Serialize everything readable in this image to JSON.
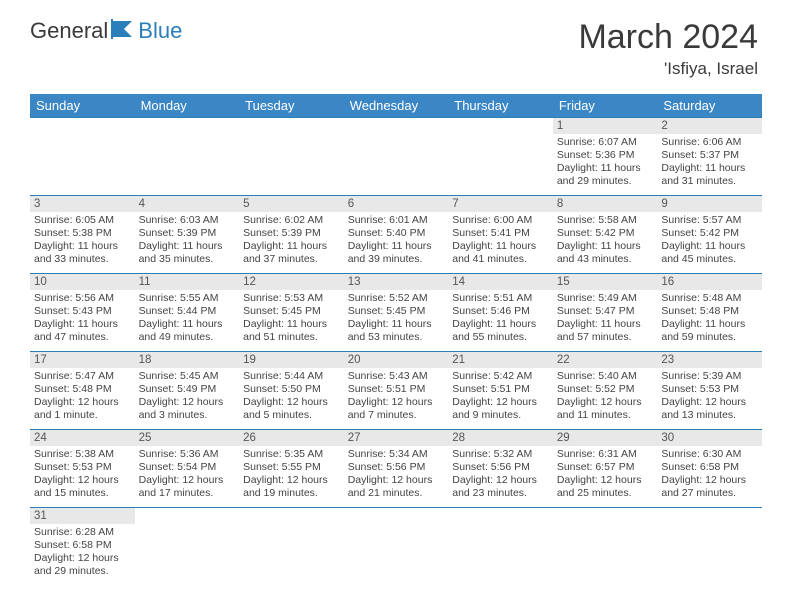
{
  "logo": {
    "text1": "General",
    "text2": "Blue"
  },
  "header": {
    "title": "March 2024",
    "location": "'Isfiya, Israel"
  },
  "colors": {
    "header_bg": "#3b86c5",
    "header_text": "#ffffff",
    "daynum_bg": "#e8e8e8",
    "border": "#2a7fba",
    "text": "#444444"
  },
  "weekdays": [
    "Sunday",
    "Monday",
    "Tuesday",
    "Wednesday",
    "Thursday",
    "Friday",
    "Saturday"
  ],
  "weeks": [
    [
      {
        "n": "",
        "sr": "",
        "ss": "",
        "dl": ""
      },
      {
        "n": "",
        "sr": "",
        "ss": "",
        "dl": ""
      },
      {
        "n": "",
        "sr": "",
        "ss": "",
        "dl": ""
      },
      {
        "n": "",
        "sr": "",
        "ss": "",
        "dl": ""
      },
      {
        "n": "",
        "sr": "",
        "ss": "",
        "dl": ""
      },
      {
        "n": "1",
        "sr": "Sunrise: 6:07 AM",
        "ss": "Sunset: 5:36 PM",
        "dl": "Daylight: 11 hours and 29 minutes."
      },
      {
        "n": "2",
        "sr": "Sunrise: 6:06 AM",
        "ss": "Sunset: 5:37 PM",
        "dl": "Daylight: 11 hours and 31 minutes."
      }
    ],
    [
      {
        "n": "3",
        "sr": "Sunrise: 6:05 AM",
        "ss": "Sunset: 5:38 PM",
        "dl": "Daylight: 11 hours and 33 minutes."
      },
      {
        "n": "4",
        "sr": "Sunrise: 6:03 AM",
        "ss": "Sunset: 5:39 PM",
        "dl": "Daylight: 11 hours and 35 minutes."
      },
      {
        "n": "5",
        "sr": "Sunrise: 6:02 AM",
        "ss": "Sunset: 5:39 PM",
        "dl": "Daylight: 11 hours and 37 minutes."
      },
      {
        "n": "6",
        "sr": "Sunrise: 6:01 AM",
        "ss": "Sunset: 5:40 PM",
        "dl": "Daylight: 11 hours and 39 minutes."
      },
      {
        "n": "7",
        "sr": "Sunrise: 6:00 AM",
        "ss": "Sunset: 5:41 PM",
        "dl": "Daylight: 11 hours and 41 minutes."
      },
      {
        "n": "8",
        "sr": "Sunrise: 5:58 AM",
        "ss": "Sunset: 5:42 PM",
        "dl": "Daylight: 11 hours and 43 minutes."
      },
      {
        "n": "9",
        "sr": "Sunrise: 5:57 AM",
        "ss": "Sunset: 5:42 PM",
        "dl": "Daylight: 11 hours and 45 minutes."
      }
    ],
    [
      {
        "n": "10",
        "sr": "Sunrise: 5:56 AM",
        "ss": "Sunset: 5:43 PM",
        "dl": "Daylight: 11 hours and 47 minutes."
      },
      {
        "n": "11",
        "sr": "Sunrise: 5:55 AM",
        "ss": "Sunset: 5:44 PM",
        "dl": "Daylight: 11 hours and 49 minutes."
      },
      {
        "n": "12",
        "sr": "Sunrise: 5:53 AM",
        "ss": "Sunset: 5:45 PM",
        "dl": "Daylight: 11 hours and 51 minutes."
      },
      {
        "n": "13",
        "sr": "Sunrise: 5:52 AM",
        "ss": "Sunset: 5:45 PM",
        "dl": "Daylight: 11 hours and 53 minutes."
      },
      {
        "n": "14",
        "sr": "Sunrise: 5:51 AM",
        "ss": "Sunset: 5:46 PM",
        "dl": "Daylight: 11 hours and 55 minutes."
      },
      {
        "n": "15",
        "sr": "Sunrise: 5:49 AM",
        "ss": "Sunset: 5:47 PM",
        "dl": "Daylight: 11 hours and 57 minutes."
      },
      {
        "n": "16",
        "sr": "Sunrise: 5:48 AM",
        "ss": "Sunset: 5:48 PM",
        "dl": "Daylight: 11 hours and 59 minutes."
      }
    ],
    [
      {
        "n": "17",
        "sr": "Sunrise: 5:47 AM",
        "ss": "Sunset: 5:48 PM",
        "dl": "Daylight: 12 hours and 1 minute."
      },
      {
        "n": "18",
        "sr": "Sunrise: 5:45 AM",
        "ss": "Sunset: 5:49 PM",
        "dl": "Daylight: 12 hours and 3 minutes."
      },
      {
        "n": "19",
        "sr": "Sunrise: 5:44 AM",
        "ss": "Sunset: 5:50 PM",
        "dl": "Daylight: 12 hours and 5 minutes."
      },
      {
        "n": "20",
        "sr": "Sunrise: 5:43 AM",
        "ss": "Sunset: 5:51 PM",
        "dl": "Daylight: 12 hours and 7 minutes."
      },
      {
        "n": "21",
        "sr": "Sunrise: 5:42 AM",
        "ss": "Sunset: 5:51 PM",
        "dl": "Daylight: 12 hours and 9 minutes."
      },
      {
        "n": "22",
        "sr": "Sunrise: 5:40 AM",
        "ss": "Sunset: 5:52 PM",
        "dl": "Daylight: 12 hours and 11 minutes."
      },
      {
        "n": "23",
        "sr": "Sunrise: 5:39 AM",
        "ss": "Sunset: 5:53 PM",
        "dl": "Daylight: 12 hours and 13 minutes."
      }
    ],
    [
      {
        "n": "24",
        "sr": "Sunrise: 5:38 AM",
        "ss": "Sunset: 5:53 PM",
        "dl": "Daylight: 12 hours and 15 minutes."
      },
      {
        "n": "25",
        "sr": "Sunrise: 5:36 AM",
        "ss": "Sunset: 5:54 PM",
        "dl": "Daylight: 12 hours and 17 minutes."
      },
      {
        "n": "26",
        "sr": "Sunrise: 5:35 AM",
        "ss": "Sunset: 5:55 PM",
        "dl": "Daylight: 12 hours and 19 minutes."
      },
      {
        "n": "27",
        "sr": "Sunrise: 5:34 AM",
        "ss": "Sunset: 5:56 PM",
        "dl": "Daylight: 12 hours and 21 minutes."
      },
      {
        "n": "28",
        "sr": "Sunrise: 5:32 AM",
        "ss": "Sunset: 5:56 PM",
        "dl": "Daylight: 12 hours and 23 minutes."
      },
      {
        "n": "29",
        "sr": "Sunrise: 6:31 AM",
        "ss": "Sunset: 6:57 PM",
        "dl": "Daylight: 12 hours and 25 minutes."
      },
      {
        "n": "30",
        "sr": "Sunrise: 6:30 AM",
        "ss": "Sunset: 6:58 PM",
        "dl": "Daylight: 12 hours and 27 minutes."
      }
    ],
    [
      {
        "n": "31",
        "sr": "Sunrise: 6:28 AM",
        "ss": "Sunset: 6:58 PM",
        "dl": "Daylight: 12 hours and 29 minutes."
      },
      {
        "n": "",
        "sr": "",
        "ss": "",
        "dl": ""
      },
      {
        "n": "",
        "sr": "",
        "ss": "",
        "dl": ""
      },
      {
        "n": "",
        "sr": "",
        "ss": "",
        "dl": ""
      },
      {
        "n": "",
        "sr": "",
        "ss": "",
        "dl": ""
      },
      {
        "n": "",
        "sr": "",
        "ss": "",
        "dl": ""
      },
      {
        "n": "",
        "sr": "",
        "ss": "",
        "dl": ""
      }
    ]
  ]
}
